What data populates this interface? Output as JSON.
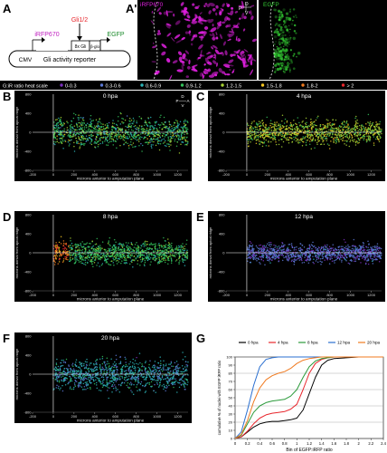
{
  "panel_letters": [
    "A",
    "A'",
    "B",
    "C",
    "D",
    "E",
    "F",
    "G"
  ],
  "reporter_diagram": {
    "driver": "Gli1/2",
    "promoter": "CMV",
    "gene1": "iRFP670",
    "elements": "8x Gli",
    "minimal_promoter": "β-glo",
    "gene2": "EGFP",
    "caption": "Gli activity reporter"
  },
  "micrographs": {
    "left_label": "iRFP670",
    "right_label": "EGFP",
    "left_color": "#e020e0",
    "right_color": "#33cc33",
    "compass_marks": [
      "D",
      "P",
      "V"
    ]
  },
  "heat_scale": {
    "label": "G:iR ratio heat scale",
    "bins": [
      "0-0.3",
      "0.3-0.6",
      "0.6-0.9",
      "0.9-1.2",
      "1.2-1.5",
      "1.5-1.8",
      "1.8-2",
      "> 2"
    ],
    "colors": [
      "#7b2fbf",
      "#5a78d6",
      "#2bb5b8",
      "#33c25a",
      "#a8d232",
      "#f5c521",
      "#f07a1f",
      "#e8262c"
    ]
  },
  "scatter_panels": [
    {
      "letter": "B",
      "title": "0 hpa",
      "orientation_marks": [
        "D",
        "P",
        "A",
        "V"
      ]
    },
    {
      "letter": "C",
      "title": "4 hpa"
    },
    {
      "letter": "D",
      "title": "8 hpa"
    },
    {
      "letter": "E",
      "title": "12 hpa"
    },
    {
      "letter": "F",
      "title": "20 hpa"
    }
  ],
  "scatter_axes": {
    "xlabel": "microns anterior to amputation plane",
    "ylabel": "microns dorsal from apical ridge",
    "xticks": [
      "-200",
      "0",
      "200",
      "400",
      "600",
      "800",
      "1000",
      "1200"
    ],
    "yticks": [
      "800",
      "600",
      "400",
      "200",
      "0",
      "-200",
      "-400",
      "-600",
      "-800"
    ]
  },
  "chart_data": {
    "type": "line",
    "panel": "G",
    "xlabel": "Bin of EGFP:iRFP ratio",
    "ylabel": "cumulative % of nuclei with EGFP:iRFP ratio",
    "xticks": [
      "0",
      "0.2",
      "0.4",
      "0.6",
      "0.8",
      "1",
      "1.2",
      "1.4",
      "1.6",
      "1.8",
      "2",
      "2.2",
      "2.4"
    ],
    "yticks": [
      "100",
      "90",
      "80",
      "70",
      "60",
      "50",
      "40",
      "30",
      "20",
      "10",
      "0"
    ],
    "xlim": [
      0,
      2.4
    ],
    "ylim": [
      0,
      100
    ],
    "legend_position": "top",
    "series": [
      {
        "name": "0 hpa",
        "color": "#000000",
        "x": [
          0,
          0.1,
          0.2,
          0.3,
          0.4,
          0.5,
          0.6,
          0.7,
          0.8,
          0.9,
          1.0,
          1.1,
          1.2,
          1.3,
          1.4,
          1.5,
          1.6,
          1.8,
          2.0,
          2.2,
          2.4
        ],
        "y": [
          0,
          2,
          8,
          14,
          18,
          20,
          21,
          21,
          22,
          23,
          25,
          35,
          55,
          75,
          90,
          96,
          98,
          99,
          100,
          100,
          100
        ]
      },
      {
        "name": "4 hpa",
        "color": "#e8262c",
        "x": [
          0,
          0.1,
          0.2,
          0.3,
          0.4,
          0.5,
          0.6,
          0.7,
          0.8,
          0.9,
          1.0,
          1.1,
          1.2,
          1.3,
          1.4,
          1.5,
          1.6,
          1.8,
          2.0,
          2.2,
          2.4
        ],
        "y": [
          0,
          2,
          9,
          18,
          25,
          29,
          31,
          32,
          33,
          36,
          42,
          60,
          80,
          92,
          97,
          99,
          100,
          100,
          100,
          100,
          100
        ]
      },
      {
        "name": "8 hpa",
        "color": "#2a9a3a",
        "x": [
          0,
          0.1,
          0.2,
          0.3,
          0.4,
          0.5,
          0.6,
          0.7,
          0.8,
          0.9,
          1.0,
          1.1,
          1.2,
          1.3,
          1.4,
          1.5,
          1.6,
          1.8,
          2.0,
          2.2,
          2.4
        ],
        "y": [
          0,
          4,
          18,
          32,
          40,
          44,
          46,
          47,
          48,
          52,
          60,
          75,
          88,
          95,
          98,
          99,
          100,
          100,
          100,
          100,
          100
        ]
      },
      {
        "name": "12 hpa",
        "color": "#2a6fd0",
        "x": [
          0,
          0.1,
          0.2,
          0.3,
          0.4,
          0.5,
          0.6,
          0.7,
          0.8,
          0.9,
          1.0,
          1.2,
          1.4,
          1.6,
          1.8,
          2.0,
          2.2,
          2.4
        ],
        "y": [
          0,
          8,
          35,
          65,
          88,
          97,
          99,
          100,
          100,
          100,
          100,
          100,
          100,
          100,
          100,
          100,
          100,
          100
        ]
      },
      {
        "name": "20 hpa",
        "color": "#f07a1f",
        "x": [
          0,
          0.1,
          0.2,
          0.3,
          0.4,
          0.5,
          0.6,
          0.7,
          0.8,
          0.9,
          1.0,
          1.1,
          1.2,
          1.4,
          1.6,
          1.8,
          2.0,
          2.2,
          2.4
        ],
        "y": [
          0,
          5,
          22,
          45,
          62,
          72,
          77,
          80,
          82,
          86,
          92,
          96,
          98,
          100,
          100,
          100,
          100,
          100,
          100
        ]
      }
    ]
  }
}
